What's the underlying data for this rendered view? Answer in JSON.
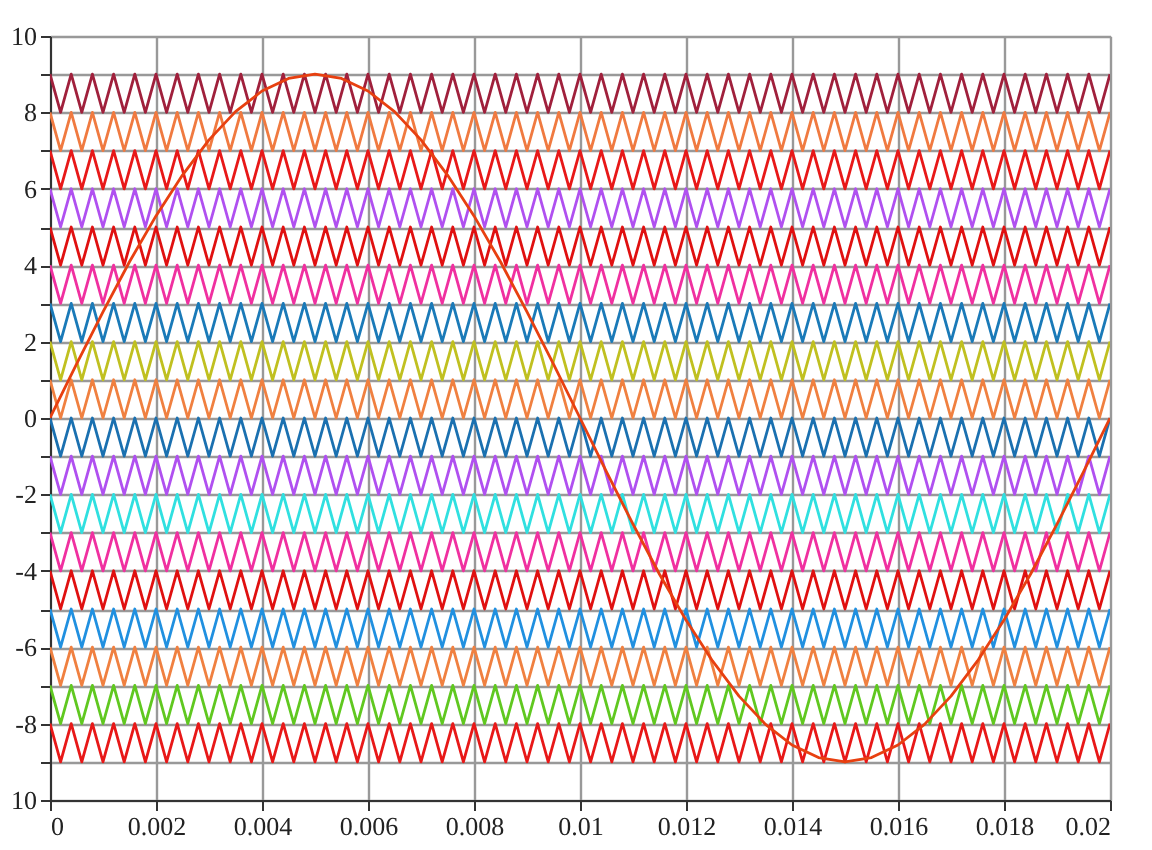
{
  "chart_data": {
    "type": "line",
    "x": [
      0,
      0.0002,
      0.0004,
      0.0006,
      0.0008,
      0.001,
      0.0012,
      0.0014,
      0.0016,
      0.0018,
      0.002,
      0.0022,
      0.0024,
      0.0026,
      0.0028,
      0.003,
      0.0032,
      0.0034,
      0.0036,
      0.0038,
      0.004,
      0.0042,
      0.0044,
      0.0046,
      0.0048,
      0.005,
      0.0052,
      0.0054,
      0.0056,
      0.0058,
      0.006,
      0.0062,
      0.0064,
      0.0066,
      0.0068,
      0.007,
      0.0072,
      0.0074,
      0.0076,
      0.0078,
      0.008,
      0.0082,
      0.0084,
      0.0086,
      0.0088,
      0.009,
      0.0092,
      0.0094,
      0.0096,
      0.0098,
      0.01,
      0.0102,
      0.0104,
      0.0106,
      0.0108,
      0.011,
      0.0112,
      0.0114,
      0.0116,
      0.0118,
      0.012,
      0.0122,
      0.0124,
      0.0126,
      0.0128,
      0.013,
      0.0132,
      0.0134,
      0.0136,
      0.0138,
      0.014,
      0.0142,
      0.0144,
      0.0146,
      0.0148,
      0.015,
      0.0152,
      0.0154,
      0.0156,
      0.0158,
      0.016,
      0.0162,
      0.0164,
      0.0166,
      0.0168,
      0.017,
      0.0172,
      0.0174,
      0.0176,
      0.0178,
      0.018,
      0.0182,
      0.0184,
      0.0186,
      0.0188,
      0.019,
      0.0192,
      0.0194,
      0.0196,
      0.0198,
      0.02
    ],
    "series": [
      {
        "color": "#a0203c",
        "values": [
          9,
          8,
          9,
          8,
          9,
          8,
          9,
          8,
          9,
          8,
          9,
          8,
          9,
          8,
          9,
          8,
          9,
          8,
          9,
          8,
          9,
          8,
          9,
          8,
          9,
          8,
          9,
          8,
          9,
          8,
          9,
          8,
          9,
          8,
          9,
          8,
          9,
          8,
          9,
          8,
          9,
          8,
          9,
          8,
          9,
          8,
          9,
          8,
          9,
          8,
          9,
          8,
          9,
          8,
          9,
          8,
          9,
          8,
          9,
          8,
          9,
          8,
          9,
          8,
          9,
          8,
          9,
          8,
          9,
          8,
          9,
          8,
          9,
          8,
          9,
          8,
          9,
          8,
          9,
          8,
          9,
          8,
          9,
          8,
          9,
          8,
          9,
          8,
          9,
          8,
          9,
          8,
          9,
          8,
          9,
          8,
          9,
          8,
          9,
          8,
          9
        ]
      },
      {
        "color": "#f07a40",
        "values": [
          8,
          7,
          8,
          7,
          8,
          7,
          8,
          7,
          8,
          7,
          8,
          7,
          8,
          7,
          8,
          7,
          8,
          7,
          8,
          7,
          8,
          7,
          8,
          7,
          8,
          7,
          8,
          7,
          8,
          7,
          8,
          7,
          8,
          7,
          8,
          7,
          8,
          7,
          8,
          7,
          8,
          7,
          8,
          7,
          8,
          7,
          8,
          7,
          8,
          7,
          8,
          7,
          8,
          7,
          8,
          7,
          8,
          7,
          8,
          7,
          8,
          7,
          8,
          7,
          8,
          7,
          8,
          7,
          8,
          7,
          8,
          7,
          8,
          7,
          8,
          7,
          8,
          7,
          8,
          7,
          8,
          7,
          8,
          7,
          8,
          7,
          8,
          7,
          8,
          7,
          8,
          7,
          8,
          7,
          8,
          7,
          8,
          7,
          8,
          7,
          8
        ]
      },
      {
        "color": "#e81818",
        "values": [
          7,
          6,
          7,
          6,
          7,
          6,
          7,
          6,
          7,
          6,
          7,
          6,
          7,
          6,
          7,
          6,
          7,
          6,
          7,
          6,
          7,
          6,
          7,
          6,
          7,
          6,
          7,
          6,
          7,
          6,
          7,
          6,
          7,
          6,
          7,
          6,
          7,
          6,
          7,
          6,
          7,
          6,
          7,
          6,
          7,
          6,
          7,
          6,
          7,
          6,
          7,
          6,
          7,
          6,
          7,
          6,
          7,
          6,
          7,
          6,
          7,
          6,
          7,
          6,
          7,
          6,
          7,
          6,
          7,
          6,
          7,
          6,
          7,
          6,
          7,
          6,
          7,
          6,
          7,
          6,
          7,
          6,
          7,
          6,
          7,
          6,
          7,
          6,
          7,
          6,
          7,
          6,
          7,
          6,
          7,
          6,
          7,
          6,
          7,
          6,
          7
        ]
      },
      {
        "color": "#b050f0",
        "values": [
          6,
          5,
          6,
          5,
          6,
          5,
          6,
          5,
          6,
          5,
          6,
          5,
          6,
          5,
          6,
          5,
          6,
          5,
          6,
          5,
          6,
          5,
          6,
          5,
          6,
          5,
          6,
          5,
          6,
          5,
          6,
          5,
          6,
          5,
          6,
          5,
          6,
          5,
          6,
          5,
          6,
          5,
          6,
          5,
          6,
          5,
          6,
          5,
          6,
          5,
          6,
          5,
          6,
          5,
          6,
          5,
          6,
          5,
          6,
          5,
          6,
          5,
          6,
          5,
          6,
          5,
          6,
          5,
          6,
          5,
          6,
          5,
          6,
          5,
          6,
          5,
          6,
          5,
          6,
          5,
          6,
          5,
          6,
          5,
          6,
          5,
          6,
          5,
          6,
          5,
          6,
          5,
          6,
          5,
          6,
          5,
          6,
          5,
          6,
          5,
          6
        ]
      },
      {
        "color": "#e01010",
        "values": [
          5,
          4,
          5,
          4,
          5,
          4,
          5,
          4,
          5,
          4,
          5,
          4,
          5,
          4,
          5,
          4,
          5,
          4,
          5,
          4,
          5,
          4,
          5,
          4,
          5,
          4,
          5,
          4,
          5,
          4,
          5,
          4,
          5,
          4,
          5,
          4,
          5,
          4,
          5,
          4,
          5,
          4,
          5,
          4,
          5,
          4,
          5,
          4,
          5,
          4,
          5,
          4,
          5,
          4,
          5,
          4,
          5,
          4,
          5,
          4,
          5,
          4,
          5,
          4,
          5,
          4,
          5,
          4,
          5,
          4,
          5,
          4,
          5,
          4,
          5,
          4,
          5,
          4,
          5,
          4,
          5,
          4,
          5,
          4,
          5,
          4,
          5,
          4,
          5,
          4,
          5,
          4,
          5,
          4,
          5,
          4,
          5,
          4,
          5,
          4,
          5
        ]
      },
      {
        "color": "#f030a0",
        "values": [
          4,
          3,
          4,
          3,
          4,
          3,
          4,
          3,
          4,
          3,
          4,
          3,
          4,
          3,
          4,
          3,
          4,
          3,
          4,
          3,
          4,
          3,
          4,
          3,
          4,
          3,
          4,
          3,
          4,
          3,
          4,
          3,
          4,
          3,
          4,
          3,
          4,
          3,
          4,
          3,
          4,
          3,
          4,
          3,
          4,
          3,
          4,
          3,
          4,
          3,
          4,
          3,
          4,
          3,
          4,
          3,
          4,
          3,
          4,
          3,
          4,
          3,
          4,
          3,
          4,
          3,
          4,
          3,
          4,
          3,
          4,
          3,
          4,
          3,
          4,
          3,
          4,
          3,
          4,
          3,
          4,
          3,
          4,
          3,
          4,
          3,
          4,
          3,
          4,
          3,
          4,
          3,
          4,
          3,
          4,
          3,
          4,
          3,
          4,
          3,
          4
        ]
      },
      {
        "color": "#1a7ab8",
        "values": [
          3,
          2,
          3,
          2,
          3,
          2,
          3,
          2,
          3,
          2,
          3,
          2,
          3,
          2,
          3,
          2,
          3,
          2,
          3,
          2,
          3,
          2,
          3,
          2,
          3,
          2,
          3,
          2,
          3,
          2,
          3,
          2,
          3,
          2,
          3,
          2,
          3,
          2,
          3,
          2,
          3,
          2,
          3,
          2,
          3,
          2,
          3,
          2,
          3,
          2,
          3,
          2,
          3,
          2,
          3,
          2,
          3,
          2,
          3,
          2,
          3,
          2,
          3,
          2,
          3,
          2,
          3,
          2,
          3,
          2,
          3,
          2,
          3,
          2,
          3,
          2,
          3,
          2,
          3,
          2,
          3,
          2,
          3,
          2,
          3,
          2,
          3,
          2,
          3,
          2,
          3,
          2,
          3,
          2,
          3,
          2,
          3,
          2,
          3,
          2,
          3
        ]
      },
      {
        "color": "#c0c020",
        "values": [
          2,
          1,
          2,
          1,
          2,
          1,
          2,
          1,
          2,
          1,
          2,
          1,
          2,
          1,
          2,
          1,
          2,
          1,
          2,
          1,
          2,
          1,
          2,
          1,
          2,
          1,
          2,
          1,
          2,
          1,
          2,
          1,
          2,
          1,
          2,
          1,
          2,
          1,
          2,
          1,
          2,
          1,
          2,
          1,
          2,
          1,
          2,
          1,
          2,
          1,
          2,
          1,
          2,
          1,
          2,
          1,
          2,
          1,
          2,
          1,
          2,
          1,
          2,
          1,
          2,
          1,
          2,
          1,
          2,
          1,
          2,
          1,
          2,
          1,
          2,
          1,
          2,
          1,
          2,
          1,
          2,
          1,
          2,
          1,
          2,
          1,
          2,
          1,
          2,
          1,
          2,
          1,
          2,
          1,
          2,
          1,
          2,
          1,
          2,
          1,
          2
        ]
      },
      {
        "color": "#f08040",
        "values": [
          1,
          0,
          1,
          0,
          1,
          0,
          1,
          0,
          1,
          0,
          1,
          0,
          1,
          0,
          1,
          0,
          1,
          0,
          1,
          0,
          1,
          0,
          1,
          0,
          1,
          0,
          1,
          0,
          1,
          0,
          1,
          0,
          1,
          0,
          1,
          0,
          1,
          0,
          1,
          0,
          1,
          0,
          1,
          0,
          1,
          0,
          1,
          0,
          1,
          0,
          1,
          0,
          1,
          0,
          1,
          0,
          1,
          0,
          1,
          0,
          1,
          0,
          1,
          0,
          1,
          0,
          1,
          0,
          1,
          0,
          1,
          0,
          1,
          0,
          1,
          0,
          1,
          0,
          1,
          0,
          1,
          0,
          1,
          0,
          1,
          0,
          1,
          0,
          1,
          0,
          1,
          0,
          1,
          0,
          1,
          0,
          1,
          0,
          1,
          0,
          1
        ]
      },
      {
        "color": "#1a70b0",
        "values": [
          0,
          -1,
          0,
          -1,
          0,
          -1,
          0,
          -1,
          0,
          -1,
          0,
          -1,
          0,
          -1,
          0,
          -1,
          0,
          -1,
          0,
          -1,
          0,
          -1,
          0,
          -1,
          0,
          -1,
          0,
          -1,
          0,
          -1,
          0,
          -1,
          0,
          -1,
          0,
          -1,
          0,
          -1,
          0,
          -1,
          0,
          -1,
          0,
          -1,
          0,
          -1,
          0,
          -1,
          0,
          -1,
          0,
          -1,
          0,
          -1,
          0,
          -1,
          0,
          -1,
          0,
          -1,
          0,
          -1,
          0,
          -1,
          0,
          -1,
          0,
          -1,
          0,
          -1,
          0,
          -1,
          0,
          -1,
          0,
          -1,
          0,
          -1,
          0,
          -1,
          0,
          -1,
          0,
          -1,
          0,
          -1,
          0,
          -1,
          0,
          -1,
          0,
          -1,
          0,
          -1,
          0,
          -1,
          0,
          -1,
          0,
          -1,
          0
        ]
      },
      {
        "color": "#b050f0",
        "values": [
          -1,
          -2,
          -1,
          -2,
          -1,
          -2,
          -1,
          -2,
          -1,
          -2,
          -1,
          -2,
          -1,
          -2,
          -1,
          -2,
          -1,
          -2,
          -1,
          -2,
          -1,
          -2,
          -1,
          -2,
          -1,
          -2,
          -1,
          -2,
          -1,
          -2,
          -1,
          -2,
          -1,
          -2,
          -1,
          -2,
          -1,
          -2,
          -1,
          -2,
          -1,
          -2,
          -1,
          -2,
          -1,
          -2,
          -1,
          -2,
          -1,
          -2,
          -1,
          -2,
          -1,
          -2,
          -1,
          -2,
          -1,
          -2,
          -1,
          -2,
          -1,
          -2,
          -1,
          -2,
          -1,
          -2,
          -1,
          -2,
          -1,
          -2,
          -1,
          -2,
          -1,
          -2,
          -1,
          -2,
          -1,
          -2,
          -1,
          -2,
          -1,
          -2,
          -1,
          -2,
          -1,
          -2,
          -1,
          -2,
          -1,
          -2,
          -1,
          -2,
          -1,
          -2,
          -1,
          -2,
          -1,
          -2,
          -1,
          -2,
          -1
        ]
      },
      {
        "color": "#30e0e0",
        "values": [
          -2,
          -3,
          -2,
          -3,
          -2,
          -3,
          -2,
          -3,
          -2,
          -3,
          -2,
          -3,
          -2,
          -3,
          -2,
          -3,
          -2,
          -3,
          -2,
          -3,
          -2,
          -3,
          -2,
          -3,
          -2,
          -3,
          -2,
          -3,
          -2,
          -3,
          -2,
          -3,
          -2,
          -3,
          -2,
          -3,
          -2,
          -3,
          -2,
          -3,
          -2,
          -3,
          -2,
          -3,
          -2,
          -3,
          -2,
          -3,
          -2,
          -3,
          -2,
          -3,
          -2,
          -3,
          -2,
          -3,
          -2,
          -3,
          -2,
          -3,
          -2,
          -3,
          -2,
          -3,
          -2,
          -3,
          -2,
          -3,
          -2,
          -3,
          -2,
          -3,
          -2,
          -3,
          -2,
          -3,
          -2,
          -3,
          -2,
          -3,
          -2,
          -3,
          -2,
          -3,
          -2,
          -3,
          -2,
          -3,
          -2,
          -3,
          -2,
          -3,
          -2,
          -3,
          -2,
          -3,
          -2,
          -3,
          -2,
          -3,
          -2
        ]
      },
      {
        "color": "#f030a0",
        "values": [
          -3,
          -4,
          -3,
          -4,
          -3,
          -4,
          -3,
          -4,
          -3,
          -4,
          -3,
          -4,
          -3,
          -4,
          -3,
          -4,
          -3,
          -4,
          -3,
          -4,
          -3,
          -4,
          -3,
          -4,
          -3,
          -4,
          -3,
          -4,
          -3,
          -4,
          -3,
          -4,
          -3,
          -4,
          -3,
          -4,
          -3,
          -4,
          -3,
          -4,
          -3,
          -4,
          -3,
          -4,
          -3,
          -4,
          -3,
          -4,
          -3,
          -4,
          -3,
          -4,
          -3,
          -4,
          -3,
          -4,
          -3,
          -4,
          -3,
          -4,
          -3,
          -4,
          -3,
          -4,
          -3,
          -4,
          -3,
          -4,
          -3,
          -4,
          -3,
          -4,
          -3,
          -4,
          -3,
          -4,
          -3,
          -4,
          -3,
          -4,
          -3,
          -4,
          -3,
          -4,
          -3,
          -4,
          -3,
          -4,
          -3,
          -4,
          -3,
          -4,
          -3,
          -4,
          -3,
          -4,
          -3,
          -4,
          -3,
          -4,
          -3
        ]
      },
      {
        "color": "#e01010",
        "values": [
          -4,
          -5,
          -4,
          -5,
          -4,
          -5,
          -4,
          -5,
          -4,
          -5,
          -4,
          -5,
          -4,
          -5,
          -4,
          -5,
          -4,
          -5,
          -4,
          -5,
          -4,
          -5,
          -4,
          -5,
          -4,
          -5,
          -4,
          -5,
          -4,
          -5,
          -4,
          -5,
          -4,
          -5,
          -4,
          -5,
          -4,
          -5,
          -4,
          -5,
          -4,
          -5,
          -4,
          -5,
          -4,
          -5,
          -4,
          -5,
          -4,
          -5,
          -4,
          -5,
          -4,
          -5,
          -4,
          -5,
          -4,
          -5,
          -4,
          -5,
          -4,
          -5,
          -4,
          -5,
          -4,
          -5,
          -4,
          -5,
          -4,
          -5,
          -4,
          -5,
          -4,
          -5,
          -4,
          -5,
          -4,
          -5,
          -4,
          -5,
          -4,
          -5,
          -4,
          -5,
          -4,
          -5,
          -4,
          -5,
          -4,
          -5,
          -4,
          -5,
          -4,
          -5,
          -4,
          -5,
          -4,
          -5,
          -4,
          -5,
          -4
        ]
      },
      {
        "color": "#2090e0",
        "values": [
          -5,
          -6,
          -5,
          -6,
          -5,
          -6,
          -5,
          -6,
          -5,
          -6,
          -5,
          -6,
          -5,
          -6,
          -5,
          -6,
          -5,
          -6,
          -5,
          -6,
          -5,
          -6,
          -5,
          -6,
          -5,
          -6,
          -5,
          -6,
          -5,
          -6,
          -5,
          -6,
          -5,
          -6,
          -5,
          -6,
          -5,
          -6,
          -5,
          -6,
          -5,
          -6,
          -5,
          -6,
          -5,
          -6,
          -5,
          -6,
          -5,
          -6,
          -5,
          -6,
          -5,
          -6,
          -5,
          -6,
          -5,
          -6,
          -5,
          -6,
          -5,
          -6,
          -5,
          -6,
          -5,
          -6,
          -5,
          -6,
          -5,
          -6,
          -5,
          -6,
          -5,
          -6,
          -5,
          -6,
          -5,
          -6,
          -5,
          -6,
          -5,
          -6,
          -5,
          -6,
          -5,
          -6,
          -5,
          -6,
          -5,
          -6,
          -5,
          -6,
          -5,
          -6,
          -5,
          -6,
          -5,
          -6,
          -5,
          -6,
          -5
        ]
      },
      {
        "color": "#f08040",
        "values": [
          -6,
          -7,
          -6,
          -7,
          -6,
          -7,
          -6,
          -7,
          -6,
          -7,
          -6,
          -7,
          -6,
          -7,
          -6,
          -7,
          -6,
          -7,
          -6,
          -7,
          -6,
          -7,
          -6,
          -7,
          -6,
          -7,
          -6,
          -7,
          -6,
          -7,
          -6,
          -7,
          -6,
          -7,
          -6,
          -7,
          -6,
          -7,
          -6,
          -7,
          -6,
          -7,
          -6,
          -7,
          -6,
          -7,
          -6,
          -7,
          -6,
          -7,
          -6,
          -7,
          -6,
          -7,
          -6,
          -7,
          -6,
          -7,
          -6,
          -7,
          -6,
          -7,
          -6,
          -7,
          -6,
          -7,
          -6,
          -7,
          -6,
          -7,
          -6,
          -7,
          -6,
          -7,
          -6,
          -7,
          -6,
          -7,
          -6,
          -7,
          -6,
          -7,
          -6,
          -7,
          -6,
          -7,
          -6,
          -7,
          -6,
          -7,
          -6,
          -7,
          -6,
          -7,
          -6,
          -7,
          -6,
          -7,
          -6,
          -7,
          -6
        ]
      },
      {
        "color": "#60c820",
        "values": [
          -7,
          -8,
          -7,
          -8,
          -7,
          -8,
          -7,
          -8,
          -7,
          -8,
          -7,
          -8,
          -7,
          -8,
          -7,
          -8,
          -7,
          -8,
          -7,
          -8,
          -7,
          -8,
          -7,
          -8,
          -7,
          -8,
          -7,
          -8,
          -7,
          -8,
          -7,
          -8,
          -7,
          -8,
          -7,
          -8,
          -7,
          -8,
          -7,
          -8,
          -7,
          -8,
          -7,
          -8,
          -7,
          -8,
          -7,
          -8,
          -7,
          -8,
          -7,
          -8,
          -7,
          -8,
          -7,
          -8,
          -7,
          -8,
          -7,
          -8,
          -7,
          -8,
          -7,
          -8,
          -7,
          -8,
          -7,
          -8,
          -7,
          -8,
          -7,
          -8,
          -7,
          -8,
          -7,
          -8,
          -7,
          -8,
          -7,
          -8,
          -7,
          -8,
          -7,
          -8,
          -7,
          -8,
          -7,
          -8,
          -7,
          -8,
          -7,
          -8,
          -7,
          -8,
          -7,
          -8,
          -7,
          -8,
          -7,
          -8,
          -7
        ]
      },
      {
        "color": "#e81818",
        "values": [
          -8,
          -9,
          -8,
          -9,
          -8,
          -9,
          -8,
          -9,
          -8,
          -9,
          -8,
          -9,
          -8,
          -9,
          -8,
          -9,
          -8,
          -9,
          -8,
          -9,
          -8,
          -9,
          -8,
          -9,
          -8,
          -9,
          -8,
          -9,
          -8,
          -9,
          -8,
          -9,
          -8,
          -9,
          -8,
          -9,
          -8,
          -9,
          -8,
          -9,
          -8,
          -9,
          -8,
          -9,
          -8,
          -9,
          -8,
          -9,
          -8,
          -9,
          -8,
          -9,
          -8,
          -9,
          -8,
          -9,
          -8,
          -9,
          -8,
          -9,
          -8,
          -9,
          -8,
          -9,
          -8,
          -9,
          -8,
          -9,
          -8,
          -9,
          -8,
          -9,
          -8,
          -9,
          -8,
          -9,
          -8,
          -9,
          -8,
          -9,
          -8,
          -9,
          -8,
          -9,
          -8,
          -9,
          -8,
          -9,
          -8,
          -9,
          -8,
          -9,
          -8,
          -9,
          -8,
          -9,
          -8,
          -9,
          -8,
          -9,
          -8
        ]
      },
      {
        "color": "#e84010",
        "type": "line",
        "x": [
          0,
          0.0005,
          0.001,
          0.0015,
          0.002,
          0.0025,
          0.003,
          0.0035,
          0.004,
          0.0045,
          0.005,
          0.0055,
          0.006,
          0.0065,
          0.007,
          0.0075,
          0.008,
          0.0085,
          0.009,
          0.0095,
          0.01,
          0.0105,
          0.011,
          0.0115,
          0.012,
          0.0125,
          0.013,
          0.0135,
          0.014,
          0.0145,
          0.015,
          0.0155,
          0.016,
          0.0165,
          0.017,
          0.0175,
          0.018,
          0.0185,
          0.019,
          0.0195,
          0.02
        ],
        "values": [
          0,
          1.41,
          2.78,
          4.09,
          5.29,
          6.36,
          7.28,
          8.02,
          8.56,
          8.89,
          9,
          8.89,
          8.56,
          8.02,
          7.28,
          6.36,
          5.29,
          4.09,
          2.78,
          1.41,
          0,
          -1.41,
          -2.78,
          -4.09,
          -5.29,
          -6.36,
          -7.28,
          -8.02,
          -8.56,
          -8.89,
          -9,
          -8.89,
          -8.56,
          -8.02,
          -7.28,
          -6.36,
          -5.29,
          -4.09,
          -2.78,
          -1.41,
          0
        ]
      }
    ],
    "xlim": [
      0,
      0.02
    ],
    "xticks": [
      0,
      0.002,
      0.004,
      0.006,
      0.008,
      0.01,
      0.012,
      0.014,
      0.016,
      0.018,
      0.02
    ],
    "ylim": [
      -10,
      10
    ],
    "yticks": [
      {
        "value": -10,
        "label": "10"
      },
      {
        "value": -9,
        "label": null
      },
      -8,
      {
        "value": -7,
        "label": null
      },
      -6,
      {
        "value": -5,
        "label": null
      },
      -4,
      {
        "value": -3,
        "label": null
      },
      -2,
      {
        "value": -1,
        "label": null
      },
      0,
      {
        "value": 1,
        "label": null
      },
      2,
      {
        "value": 3,
        "label": null
      },
      4,
      {
        "value": 5,
        "label": null
      },
      6,
      {
        "value": 7,
        "label": null
      },
      8,
      {
        "value": 9,
        "label": null
      },
      10
    ],
    "grid": true
  }
}
